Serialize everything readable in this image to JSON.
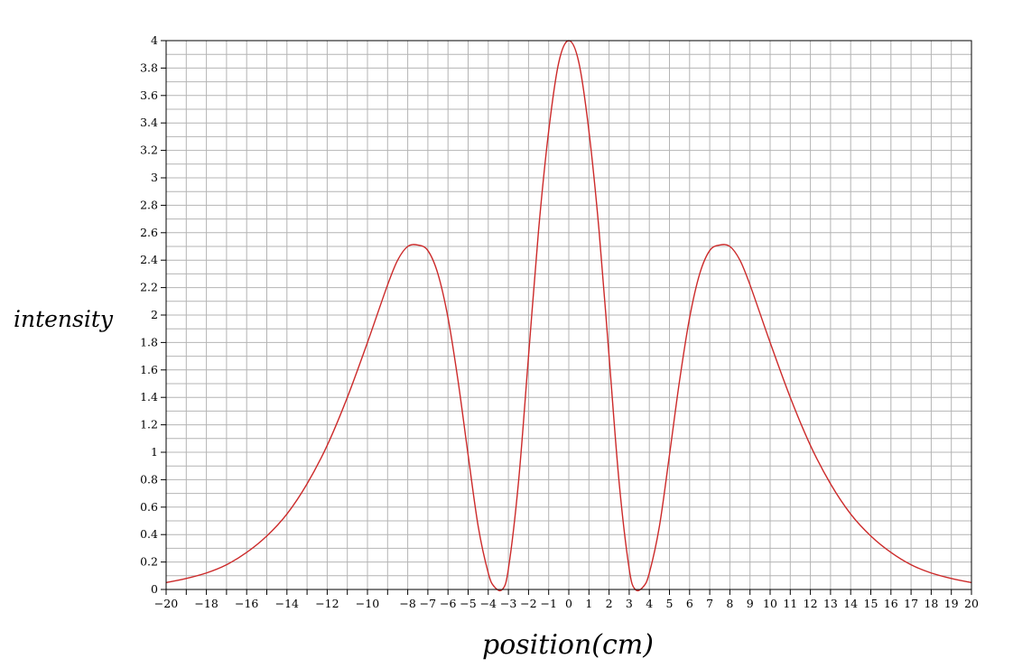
{
  "chart_data": {
    "type": "line",
    "xlabel": "position(cm)",
    "ylabel": "intensity",
    "xlim": [
      -20,
      20
    ],
    "ylim": [
      0,
      4
    ],
    "grid": true,
    "y_tick_labels": [
      "0",
      "0.2",
      "0.4",
      "0.6",
      "0.8",
      "1",
      "1.2",
      "1.4",
      "1.6",
      "1.8",
      "2",
      "2.2",
      "2.4",
      "2.6",
      "2.8",
      "3",
      "3.2",
      "3.4",
      "3.6",
      "3.8",
      "4"
    ],
    "x_tick_labels": [
      "-20",
      "-18",
      "-16",
      "-14",
      "-12",
      "-10",
      "-8",
      "-7",
      "-6",
      "-5",
      "-4",
      "-3",
      "-2",
      "-1",
      "0",
      "1",
      "2",
      "3",
      "4",
      "5",
      "6",
      "7",
      "8",
      "9",
      "10",
      "11",
      "12",
      "13",
      "14",
      "15",
      "16",
      "17",
      "18",
      "19",
      "20"
    ],
    "series": [
      {
        "color": "#cc2a2a",
        "x": [
          -20,
          -19,
          -18,
          -17,
          -16,
          -15,
          -14,
          -13,
          -12,
          -11,
          -10,
          -9,
          -8.5,
          -8,
          -7.5,
          -7,
          -6.5,
          -6,
          -5.5,
          -5,
          -4.5,
          -4,
          -3.7,
          -3.3,
          -3,
          -2.5,
          -2,
          -1.5,
          -1,
          -0.5,
          0,
          0.5,
          1,
          1.5,
          2,
          2.5,
          3,
          3.3,
          3.7,
          4,
          4.5,
          5,
          5.5,
          6,
          6.5,
          7,
          7.5,
          8,
          8.5,
          9,
          10,
          11,
          12,
          13,
          14,
          15,
          16,
          17,
          18,
          19,
          20
        ],
        "y": [
          0.05,
          0.08,
          0.12,
          0.18,
          0.27,
          0.39,
          0.55,
          0.77,
          1.05,
          1.4,
          1.8,
          2.22,
          2.4,
          2.5,
          2.51,
          2.47,
          2.3,
          1.98,
          1.52,
          0.98,
          0.46,
          0.12,
          0.02,
          0.0,
          0.15,
          0.78,
          1.7,
          2.62,
          3.34,
          3.84,
          4.0,
          3.84,
          3.34,
          2.62,
          1.7,
          0.78,
          0.15,
          0.0,
          0.02,
          0.12,
          0.46,
          0.98,
          1.52,
          1.98,
          2.3,
          2.47,
          2.51,
          2.5,
          2.4,
          2.22,
          1.8,
          1.4,
          1.05,
          0.77,
          0.55,
          0.39,
          0.27,
          0.18,
          0.12,
          0.08,
          0.05
        ]
      }
    ]
  }
}
